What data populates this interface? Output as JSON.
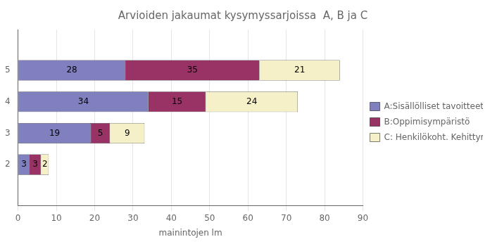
{
  "chart_data": {
    "type": "bar",
    "orientation": "horizontal",
    "stacked": true,
    "title": "Arvioiden jakaumat kysymyssarjoissa  A, B ja C",
    "xlabel": "mainintojen lm",
    "categories": [
      2,
      3,
      4,
      5
    ],
    "series": [
      {
        "name": "A:Sisällölliset tavoitteet",
        "color": "#8080bf",
        "values": [
          3,
          19,
          34,
          28
        ]
      },
      {
        "name": "B:Oppimisympäristö",
        "color": "#993366",
        "values": [
          3,
          5,
          15,
          35
        ]
      },
      {
        "name": "C: Henkilökoht. Kehittyminen",
        "color": "#f5f0c8",
        "values": [
          2,
          9,
          24,
          21
        ]
      }
    ],
    "xlim": [
      0,
      90
    ],
    "xticks": [
      0,
      10,
      20,
      30,
      40,
      50,
      60,
      70,
      80,
      90
    ],
    "ylim": [
      1.4,
      5.6
    ],
    "yticks": [
      2,
      3,
      4,
      5
    ],
    "grid": "x",
    "legend": "right",
    "data_labels": true
  }
}
